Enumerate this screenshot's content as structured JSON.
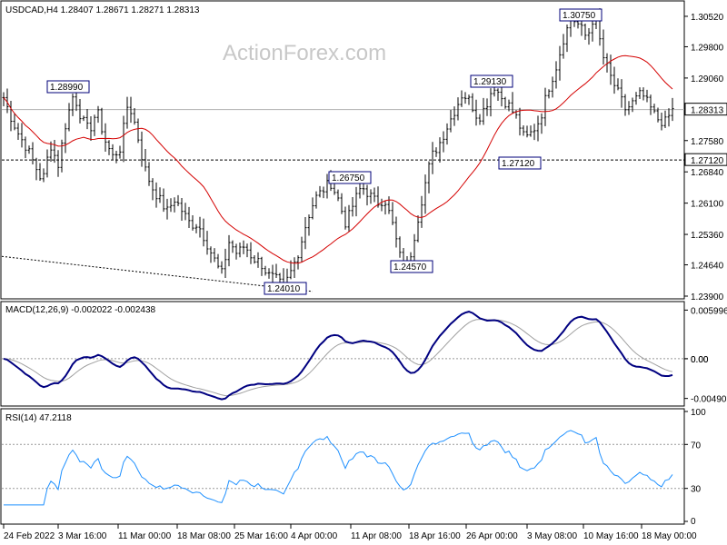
{
  "watermark": "ActionForex.com",
  "chart_data": [
    {
      "type": "candlestick",
      "title": "USDCAD,H4  1.28407 1.28671 1.28271 1.28313",
      "ylim": [
        1.239,
        1.3082
      ],
      "yticks": [
        "1.30520",
        "1.29800",
        "1.29060",
        "1.28313",
        "1.27580",
        "1.27120",
        "1.26840",
        "1.26100",
        "1.25360",
        "1.24640",
        "1.23900"
      ],
      "ytick_values": [
        1.3052,
        1.298,
        1.2906,
        1.28313,
        1.2758,
        1.2712,
        1.2684,
        1.261,
        1.2536,
        1.2464,
        1.239
      ],
      "current_price": "1.28313",
      "support_level": "1.27120",
      "support_value": 1.2712,
      "annotations": [
        {
          "label": "1.28990",
          "value": 1.2899
        },
        {
          "label": "1.26750",
          "value": 1.2675
        },
        {
          "label": "1.24010",
          "value": 1.2401
        },
        {
          "label": "1.24570",
          "value": 1.2457
        },
        {
          "label": "1.29130",
          "value": 1.2913
        },
        {
          "label": "1.27120",
          "value": 1.2712
        },
        {
          "label": "1.30750",
          "value": 1.3075
        }
      ],
      "close_path": [
        1.286,
        1.281,
        1.277,
        1.274,
        1.27,
        1.266,
        1.275,
        1.27,
        1.28,
        1.287,
        1.281,
        1.278,
        1.283,
        1.276,
        1.272,
        1.274,
        1.285,
        1.279,
        1.27,
        1.265,
        1.262,
        1.259,
        1.262,
        1.259,
        1.256,
        1.256,
        1.252,
        1.248,
        1.244,
        1.252,
        1.249,
        1.251,
        1.248,
        1.247,
        1.244,
        1.243,
        1.241,
        1.245,
        1.25,
        1.257,
        1.262,
        1.264,
        1.266,
        1.262,
        1.256,
        1.261,
        1.265,
        1.263,
        1.261,
        1.262,
        1.256,
        1.248,
        1.246,
        1.255,
        1.264,
        1.272,
        1.275,
        1.279,
        1.283,
        1.287,
        1.285,
        1.281,
        1.284,
        1.289,
        1.286,
        1.284,
        1.281,
        1.276,
        1.278,
        1.281,
        1.288,
        1.293,
        1.3,
        1.305,
        1.303,
        1.3,
        1.306,
        1.296,
        1.291,
        1.287,
        1.283,
        1.285,
        1.287,
        1.284,
        1.281,
        1.28,
        1.283
      ]
    },
    {
      "type": "line",
      "title": "MACD(12,26,9) -0.002022 -0.002438",
      "ylim": [
        -0.0055,
        0.0066
      ],
      "yticks": [
        "0.005996",
        "0.00",
        "0.00",
        "-0.004901"
      ],
      "ytick_values": [
        0.005996,
        0.0,
        0.0,
        -0.004901
      ]
    },
    {
      "type": "line",
      "title": "RSI(14) 47.2118",
      "ylim": [
        0,
        100
      ],
      "yticks": [
        "100",
        "70",
        "30",
        "0"
      ],
      "ytick_values": [
        100,
        70,
        30,
        0
      ],
      "levels": [
        70,
        30
      ]
    }
  ],
  "x_axis": {
    "categories": [
      "24 Feb 2022",
      "3 Mar 16:00",
      "11 Mar 00:00",
      "18 Mar 08:00",
      "25 Mar 16:00",
      "4 Apr 00:00",
      "11 Apr 08:00",
      "18 Apr 16:00",
      "26 Apr 00:00",
      "3 May 08:00",
      "10 May 16:00",
      "18 May 00:00"
    ]
  }
}
